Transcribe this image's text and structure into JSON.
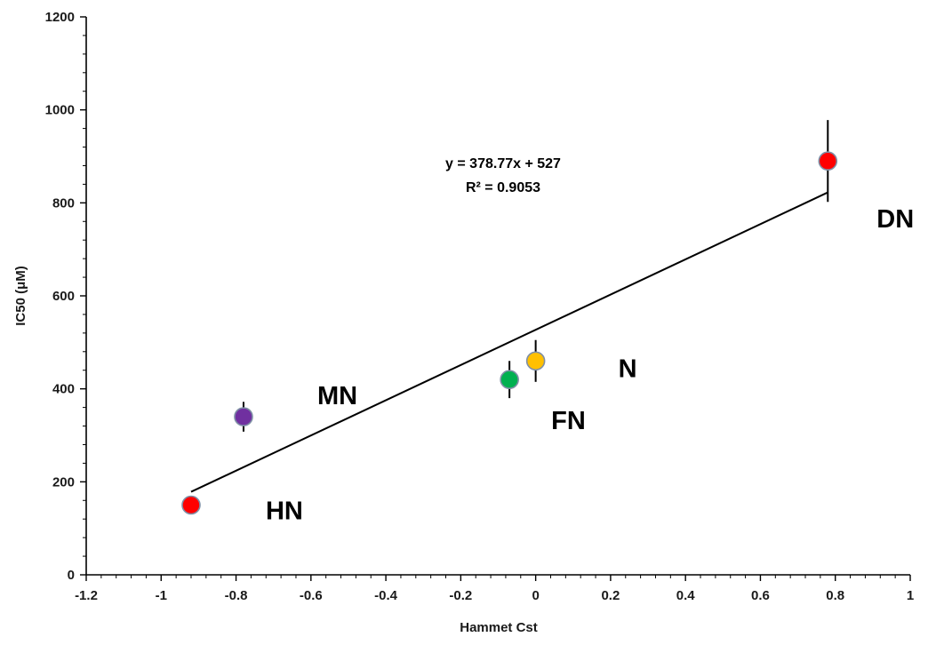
{
  "chart_data": {
    "type": "scatter",
    "xlabel": "Hammet Cst",
    "ylabel": "IC50 (μM)",
    "xlim": [
      -1.2,
      1
    ],
    "ylim": [
      0,
      1200
    ],
    "x_ticks": [
      "-1.2",
      "-1",
      "-0.8",
      "-0.6",
      "-0.4",
      "-0.2",
      "0",
      "0.2",
      "0.4",
      "0.6",
      "0.8",
      "1"
    ],
    "y_ticks": [
      "0",
      "200",
      "400",
      "600",
      "800",
      "1000",
      "1200"
    ],
    "grid": false,
    "points": [
      {
        "label": "HN",
        "x": -0.92,
        "y": 150,
        "error": 0,
        "color": "#ff0000"
      },
      {
        "label": "MN",
        "x": -0.78,
        "y": 340,
        "error": 32,
        "color": "#7030a0"
      },
      {
        "label": "FN",
        "x": -0.07,
        "y": 420,
        "error": 40,
        "color": "#00b050"
      },
      {
        "label": "N",
        "x": 0.0,
        "y": 460,
        "error": 45,
        "color": "#ffc000"
      },
      {
        "label": "DN",
        "x": 0.78,
        "y": 890,
        "error": 88,
        "color": "#ff0000"
      }
    ],
    "trendline": {
      "slope": 378.77,
      "intercept": 527,
      "x_range": [
        -0.92,
        0.78
      ],
      "equation": "y = 378.77x + 527",
      "r_squared": "R² = 0.9053"
    }
  }
}
